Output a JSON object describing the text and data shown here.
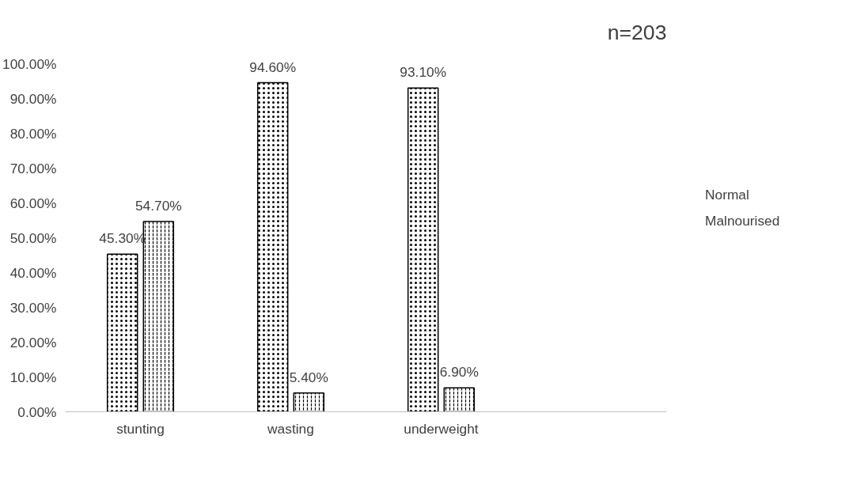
{
  "chart_data": {
    "type": "bar",
    "categories": [
      "stunting",
      "wasting",
      "underweight",
      null
    ],
    "series": [
      {
        "name": "Normal",
        "color": "#ffffff",
        "values": [
          45.3,
          94.6,
          93.1,
          null
        ],
        "value_labels": [
          "45.30%",
          "94.60%",
          "93.10%",
          null
        ]
      },
      {
        "name": "Malnourised",
        "color": "#ffffff",
        "values": [
          54.7,
          5.4,
          6.9,
          null
        ],
        "value_labels": [
          "54.70%",
          "5.40%",
          "6.90%",
          null
        ]
      }
    ],
    "ylim": [
      0,
      100
    ],
    "yticks": [
      {
        "value": 0,
        "label": "0.00%"
      },
      {
        "value": 10,
        "label": "10.00%"
      },
      {
        "value": 20,
        "label": "20.00%"
      },
      {
        "value": 30,
        "label": "30.00%"
      },
      {
        "value": 40,
        "label": "40.00%"
      },
      {
        "value": 50,
        "label": "50.00%"
      },
      {
        "value": 60,
        "label": "60.00%"
      },
      {
        "value": 70,
        "label": "70.00%"
      },
      {
        "value": 80,
        "label": "80.00%"
      },
      {
        "value": 90,
        "label": "90.00%"
      },
      {
        "value": 100,
        "label": "100.00%"
      }
    ],
    "annotations": [
      "n=203"
    ],
    "grid": false,
    "legend": "right"
  }
}
